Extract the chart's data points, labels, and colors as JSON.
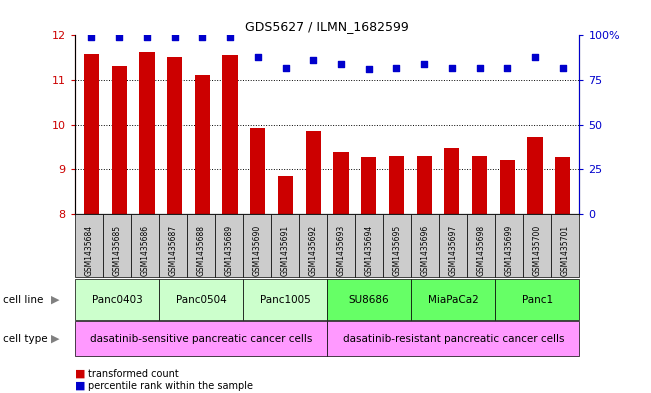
{
  "title": "GDS5627 / ILMN_1682599",
  "samples": [
    "GSM1435684",
    "GSM1435685",
    "GSM1435686",
    "GSM1435687",
    "GSM1435688",
    "GSM1435689",
    "GSM1435690",
    "GSM1435691",
    "GSM1435692",
    "GSM1435693",
    "GSM1435694",
    "GSM1435695",
    "GSM1435696",
    "GSM1435697",
    "GSM1435698",
    "GSM1435699",
    "GSM1435700",
    "GSM1435701"
  ],
  "transformed_count": [
    11.58,
    11.32,
    11.62,
    11.52,
    11.12,
    11.55,
    9.92,
    8.85,
    9.85,
    9.4,
    9.28,
    9.3,
    9.3,
    9.48,
    9.3,
    9.22,
    9.72,
    9.28
  ],
  "percentile_rank": [
    99,
    99,
    99,
    99,
    99,
    99,
    88,
    82,
    86,
    84,
    81,
    82,
    84,
    82,
    82,
    82,
    88,
    82
  ],
  "ylim_left": [
    8,
    12
  ],
  "ylim_right": [
    0,
    100
  ],
  "yticks_left": [
    8,
    9,
    10,
    11,
    12
  ],
  "yticks_right": [
    0,
    25,
    50,
    75,
    100
  ],
  "ytick_labels_right": [
    "0",
    "25",
    "50",
    "75",
    "100%"
  ],
  "bar_color": "#cc0000",
  "dot_color": "#0000cc",
  "grid_color": "#000000",
  "tick_bg_color": "#cccccc",
  "cell_lines": [
    {
      "name": "Panc0403",
      "start": 0,
      "end": 2,
      "color": "#ccffcc"
    },
    {
      "name": "Panc0504",
      "start": 3,
      "end": 5,
      "color": "#ccffcc"
    },
    {
      "name": "Panc1005",
      "start": 6,
      "end": 8,
      "color": "#ccffcc"
    },
    {
      "name": "SU8686",
      "start": 9,
      "end": 11,
      "color": "#66ff66"
    },
    {
      "name": "MiaPaCa2",
      "start": 12,
      "end": 14,
      "color": "#66ff66"
    },
    {
      "name": "Panc1",
      "start": 15,
      "end": 17,
      "color": "#66ff66"
    }
  ],
  "cell_types": [
    {
      "name": "dasatinib-sensitive pancreatic cancer cells",
      "start": 0,
      "end": 8,
      "color": "#ff99ff"
    },
    {
      "name": "dasatinib-resistant pancreatic cancer cells",
      "start": 9,
      "end": 17,
      "color": "#ff99ff"
    }
  ],
  "axis_label_color_left": "#cc0000",
  "axis_label_color_right": "#0000cc",
  "background_color": "#ffffff"
}
